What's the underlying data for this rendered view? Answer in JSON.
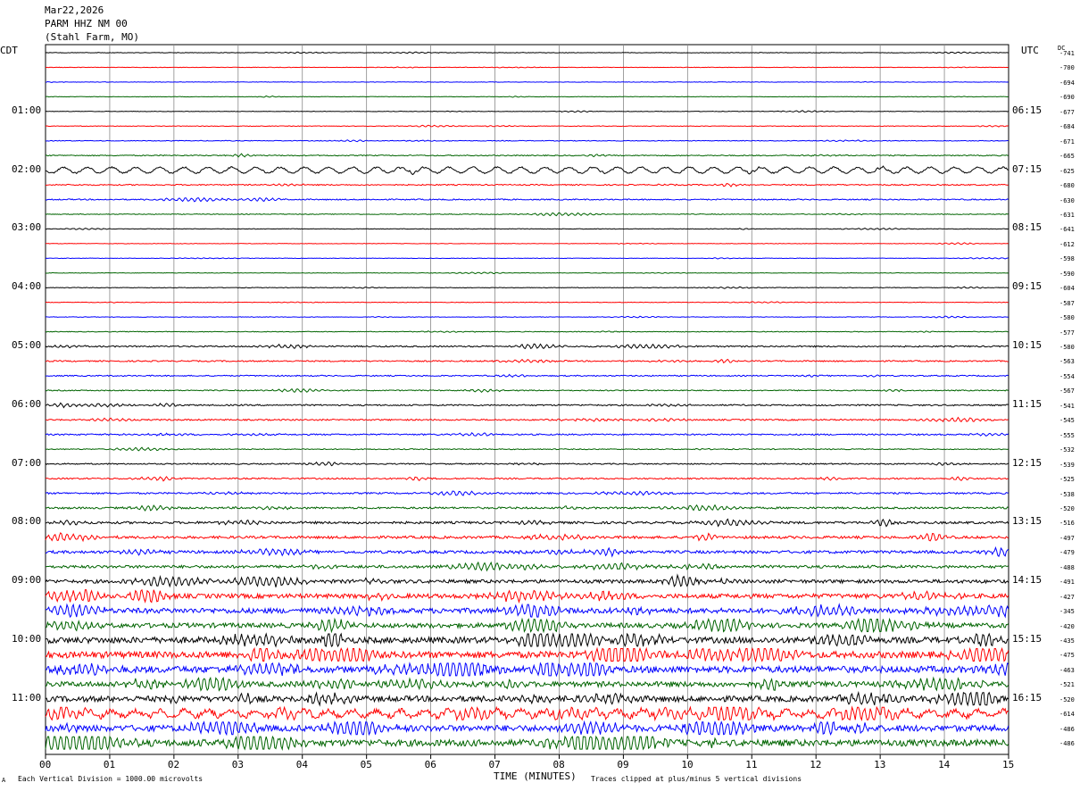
{
  "header": {
    "date": "Mar22,2026",
    "station": "PARM HHZ NM 00",
    "location": "(Stahl Farm, MO)"
  },
  "left_timezone": "CDT",
  "right_timezone": "UTC",
  "dc_label": "DC",
  "footer": {
    "scale_note": "Each Vertical Division = 1000.00 microvolts",
    "clip_note": "Traces clipped at plus/minus 5 vertical divisions",
    "corner_mark": "A"
  },
  "colors": {
    "trace_cycle": [
      "#000000",
      "#ff0000",
      "#0000ff",
      "#006400"
    ],
    "grid": "#888888"
  },
  "chart_data": {
    "type": "line",
    "title": "PARM HHZ NM 00",
    "xlabel": "TIME (MINUTES)",
    "ylabel": "",
    "x_ticks": [
      "00",
      "01",
      "02",
      "03",
      "04",
      "05",
      "06",
      "07",
      "08",
      "09",
      "10",
      "11",
      "12",
      "13",
      "14",
      "15"
    ],
    "xlim": [
      0,
      15
    ],
    "lines_per_hour": 4,
    "left_hour_labels": [
      "01:00",
      "02:00",
      "03:00",
      "04:00",
      "05:00",
      "06:00",
      "07:00",
      "08:00",
      "09:00",
      "10:00",
      "11:00"
    ],
    "right_hour_labels": [
      "06:15",
      "07:15",
      "08:15",
      "09:15",
      "10:15",
      "11:15",
      "12:15",
      "13:15",
      "14:15",
      "15:15",
      "16:15"
    ],
    "trace_offsets": [
      -741,
      -700,
      -694,
      -690,
      -677,
      -684,
      -671,
      -665,
      -625,
      -680,
      -630,
      -631,
      -641,
      -612,
      -598,
      -590,
      -604,
      -587,
      -580,
      -577,
      -580,
      -563,
      -554,
      -567,
      -541,
      -545,
      -555,
      -532,
      -539,
      -525,
      -538,
      -520,
      -516,
      -497,
      -479,
      -488,
      -491,
      -427,
      -345,
      -420,
      -435,
      -475,
      -463,
      -521,
      -520,
      -614,
      -486,
      -486
    ],
    "trace_activity": [
      0.12,
      0.1,
      0.1,
      0.1,
      0.1,
      0.12,
      0.15,
      0.22,
      0.3,
      0.25,
      0.25,
      0.15,
      0.12,
      0.1,
      0.1,
      0.1,
      0.12,
      0.12,
      0.12,
      0.15,
      0.3,
      0.28,
      0.25,
      0.22,
      0.3,
      0.3,
      0.3,
      0.2,
      0.25,
      0.3,
      0.35,
      0.4,
      0.5,
      0.55,
      0.6,
      0.6,
      0.75,
      0.95,
      1.1,
      1.0,
      1.3,
      1.4,
      1.4,
      1.1,
      1.2,
      1.1,
      1.3,
      1.4
    ],
    "swell_traces": [
      8,
      45
    ],
    "grid": true
  }
}
